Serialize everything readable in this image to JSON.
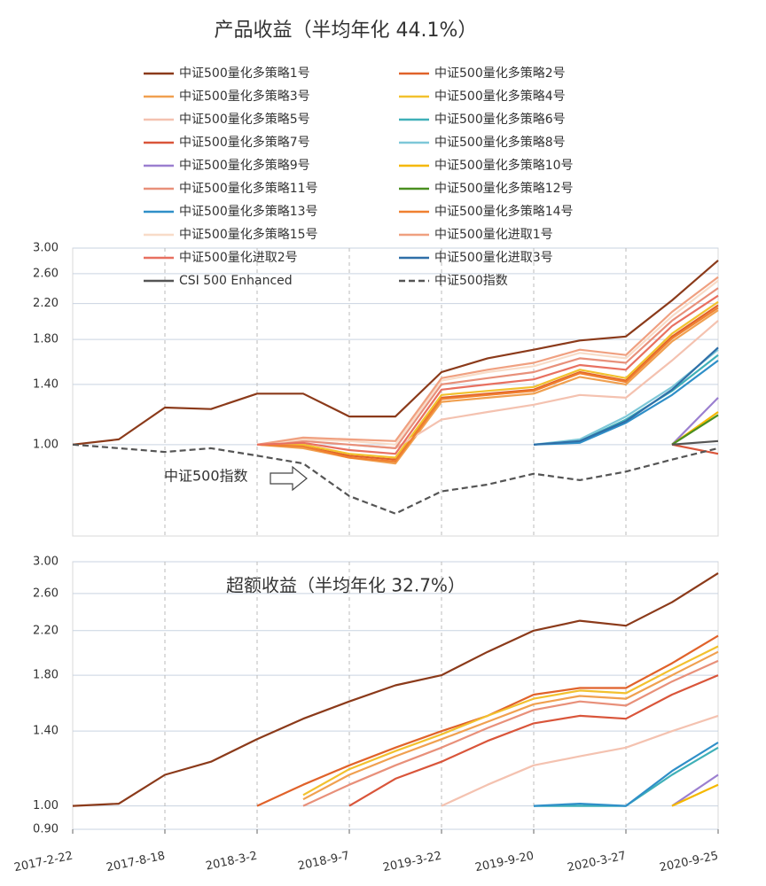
{
  "chart_data": [
    {
      "type": "line",
      "title": "产品收益（半均年化 44.1%）",
      "annotation": "中证500指数",
      "log": true,
      "grid": true,
      "legend": "top",
      "ylim": [
        0.6,
        3.0
      ],
      "yticks": [
        {
          "value": 1,
          "label": "1.00"
        },
        {
          "value": 1.4,
          "label": "1.40"
        },
        {
          "value": 1.8,
          "label": "1.80"
        },
        {
          "value": 2.2,
          "label": "2.20"
        },
        {
          "value": 2.6,
          "label": "2.60"
        },
        {
          "value": 3,
          "label": "3.00"
        }
      ],
      "series": [
        {
          "name": "中证500量化多策略1号",
          "color": "#8b3a1a",
          "values": [
            1.0,
            1.03,
            1.23,
            1.22,
            1.33,
            1.33,
            1.17,
            1.17,
            1.5,
            1.62,
            1.7,
            1.79,
            1.83,
            2.24,
            2.8
          ]
        },
        {
          "name": "中证500量化多策略2号",
          "color": "#e0622a",
          "values": [
            null,
            null,
            null,
            null,
            1.0,
            0.99,
            0.94,
            0.92,
            1.3,
            1.33,
            1.36,
            1.5,
            1.43,
            1.83,
            2.18
          ]
        },
        {
          "name": "中证500量化多策略3号",
          "color": "#f0a050",
          "values": [
            null,
            null,
            null,
            null,
            1.0,
            0.98,
            0.93,
            0.9,
            1.27,
            1.3,
            1.33,
            1.46,
            1.4,
            1.78,
            2.12
          ]
        },
        {
          "name": "中证500量化多策略4号",
          "color": "#f2c12e",
          "values": [
            null,
            null,
            null,
            null,
            1.0,
            1.0,
            0.95,
            0.93,
            1.32,
            1.35,
            1.38,
            1.52,
            1.45,
            1.86,
            2.22
          ]
        },
        {
          "name": "中证500量化多策略5号",
          "color": "#f4c2b0",
          "values": [
            null,
            null,
            null,
            null,
            null,
            null,
            1.0,
            0.98,
            1.15,
            1.2,
            1.25,
            1.32,
            1.3,
            1.6,
            2.0
          ]
        },
        {
          "name": "中证500量化多策略6号",
          "color": "#3fb0b8",
          "values": [
            null,
            null,
            null,
            null,
            null,
            null,
            null,
            null,
            null,
            null,
            1.0,
            1.02,
            1.15,
            1.35,
            1.65
          ]
        },
        {
          "name": "中证500量化多策略7号",
          "color": "#d9553a",
          "values": [
            null,
            null,
            null,
            null,
            null,
            null,
            null,
            null,
            null,
            null,
            null,
            null,
            null,
            1.0,
            0.95
          ]
        },
        {
          "name": "中证500量化多策略8号",
          "color": "#7ec8d8",
          "values": [
            null,
            null,
            null,
            null,
            null,
            null,
            null,
            null,
            null,
            null,
            1.0,
            1.03,
            1.17,
            1.38,
            1.7
          ]
        },
        {
          "name": "中证500量化多策略9号",
          "color": "#9b7fd0",
          "values": [
            null,
            null,
            null,
            null,
            null,
            null,
            null,
            null,
            null,
            null,
            null,
            null,
            null,
            1.0,
            1.3
          ]
        },
        {
          "name": "中证500量化多策略10号",
          "color": "#f5b800",
          "values": [
            null,
            null,
            null,
            null,
            null,
            null,
            null,
            null,
            null,
            null,
            null,
            null,
            null,
            1.0,
            1.2
          ]
        },
        {
          "name": "中证500量化多策略11号",
          "color": "#e8907a",
          "values": [
            null,
            null,
            null,
            null,
            1.0,
            1.02,
            1.0,
            0.98,
            1.4,
            1.45,
            1.5,
            1.62,
            1.58,
            2.0,
            2.4
          ]
        },
        {
          "name": "中证500量化多策略12号",
          "color": "#4a8f20",
          "values": [
            null,
            null,
            null,
            null,
            null,
            null,
            null,
            null,
            null,
            null,
            null,
            null,
            null,
            1.0,
            1.18
          ]
        },
        {
          "name": "中证500量化多策略13号",
          "color": "#2f8fc8",
          "values": [
            null,
            null,
            null,
            null,
            null,
            null,
            null,
            null,
            null,
            null,
            1.0,
            1.01,
            1.13,
            1.32,
            1.6
          ]
        },
        {
          "name": "中证500量化多策略14号",
          "color": "#f08030",
          "values": [
            null,
            null,
            null,
            null,
            1.0,
            0.99,
            0.93,
            0.91,
            1.29,
            1.32,
            1.35,
            1.49,
            1.42,
            1.81,
            2.15
          ]
        },
        {
          "name": "中证500量化多策略15号",
          "color": "#f8dcc8",
          "values": [
            null,
            null,
            null,
            null,
            1.0,
            1.03,
            1.02,
            1.0,
            1.43,
            1.5,
            1.55,
            1.67,
            1.62,
            2.05,
            2.5
          ]
        },
        {
          "name": "中证500量化进取1号",
          "color": "#f0a080",
          "values": [
            null,
            null,
            null,
            null,
            1.0,
            1.04,
            1.03,
            1.02,
            1.45,
            1.52,
            1.58,
            1.7,
            1.65,
            2.1,
            2.55
          ]
        },
        {
          "name": "中证500量化进取2号",
          "color": "#e87060",
          "values": [
            null,
            null,
            null,
            null,
            1.0,
            1.01,
            0.97,
            0.95,
            1.36,
            1.4,
            1.44,
            1.56,
            1.52,
            1.94,
            2.3
          ]
        },
        {
          "name": "中证500量化进取3号",
          "color": "#2f6fa8",
          "values": [
            null,
            null,
            null,
            null,
            null,
            null,
            null,
            null,
            null,
            null,
            1.0,
            1.02,
            1.14,
            1.36,
            1.72
          ]
        },
        {
          "name": "CSI 500 Enhanced",
          "color": "#555555",
          "values": [
            null,
            null,
            null,
            null,
            null,
            null,
            null,
            null,
            null,
            null,
            null,
            null,
            null,
            1.0,
            1.02
          ]
        },
        {
          "name": "中证500指数",
          "color": "#555555",
          "dashed": true,
          "values": [
            1.0,
            0.98,
            0.96,
            0.98,
            0.94,
            0.9,
            0.75,
            0.68,
            0.77,
            0.8,
            0.85,
            0.82,
            0.86,
            0.92,
            0.98
          ]
        }
      ]
    },
    {
      "type": "line",
      "title": "超额收益（半均年化 32.7%）",
      "log": true,
      "grid": true,
      "categories": [
        "2017-2-22",
        null,
        "2017-8-18",
        null,
        "2018-3-2",
        null,
        "2018-9-7",
        null,
        "2019-3-22",
        null,
        "2019-9-20",
        null,
        "2020-3-27",
        null,
        "2020-9-25"
      ],
      "ylim": [
        0.9,
        3.0
      ],
      "yticks": [
        {
          "value": 0.9,
          "label": "0.90"
        },
        {
          "value": 1,
          "label": "1.00"
        },
        {
          "value": 1.4,
          "label": "1.40"
        },
        {
          "value": 1.8,
          "label": "1.80"
        },
        {
          "value": 2.2,
          "label": "2.20"
        },
        {
          "value": 2.6,
          "label": "2.60"
        },
        {
          "value": 3,
          "label": "3.00"
        }
      ],
      "series": [
        {
          "color": "#8b3a1a",
          "values": [
            1.0,
            1.01,
            1.15,
            1.22,
            1.35,
            1.48,
            1.6,
            1.72,
            1.8,
            2.0,
            2.2,
            2.3,
            2.25,
            2.5,
            2.85
          ]
        },
        {
          "color": "#e0622a",
          "values": [
            null,
            null,
            null,
            null,
            1.0,
            1.1,
            1.2,
            1.3,
            1.4,
            1.5,
            1.65,
            1.7,
            1.7,
            1.9,
            2.15
          ]
        },
        {
          "color": "#f2c12e",
          "values": [
            null,
            null,
            null,
            null,
            null,
            1.05,
            1.18,
            1.28,
            1.38,
            1.5,
            1.62,
            1.68,
            1.66,
            1.85,
            2.05
          ]
        },
        {
          "color": "#f0a050",
          "values": [
            null,
            null,
            null,
            null,
            null,
            1.03,
            1.15,
            1.25,
            1.35,
            1.46,
            1.58,
            1.64,
            1.62,
            1.8,
            2.0
          ]
        },
        {
          "color": "#e8907a",
          "values": [
            null,
            null,
            null,
            null,
            null,
            1.0,
            1.1,
            1.2,
            1.3,
            1.42,
            1.54,
            1.6,
            1.57,
            1.75,
            1.92
          ]
        },
        {
          "color": "#d9553a",
          "values": [
            null,
            null,
            null,
            null,
            null,
            null,
            1.0,
            1.13,
            1.22,
            1.34,
            1.45,
            1.5,
            1.48,
            1.65,
            1.8
          ]
        },
        {
          "color": "#f4c2b0",
          "values": [
            null,
            null,
            null,
            null,
            null,
            null,
            null,
            null,
            1.0,
            1.1,
            1.2,
            1.25,
            1.3,
            1.4,
            1.5
          ]
        },
        {
          "color": "#3fb0b8",
          "values": [
            null,
            null,
            null,
            null,
            null,
            null,
            null,
            null,
            null,
            null,
            1.0,
            1.0,
            1.0,
            1.15,
            1.3
          ]
        },
        {
          "color": "#2f8fc8",
          "values": [
            null,
            null,
            null,
            null,
            null,
            null,
            null,
            null,
            null,
            null,
            1.0,
            1.01,
            1.0,
            1.17,
            1.33
          ]
        },
        {
          "color": "#9b7fd0",
          "values": [
            null,
            null,
            null,
            null,
            null,
            null,
            null,
            null,
            null,
            null,
            null,
            null,
            null,
            1.0,
            1.15
          ]
        },
        {
          "color": "#f5b800",
          "values": [
            null,
            null,
            null,
            null,
            null,
            null,
            null,
            null,
            null,
            null,
            null,
            null,
            null,
            1.0,
            1.1
          ]
        }
      ]
    }
  ]
}
